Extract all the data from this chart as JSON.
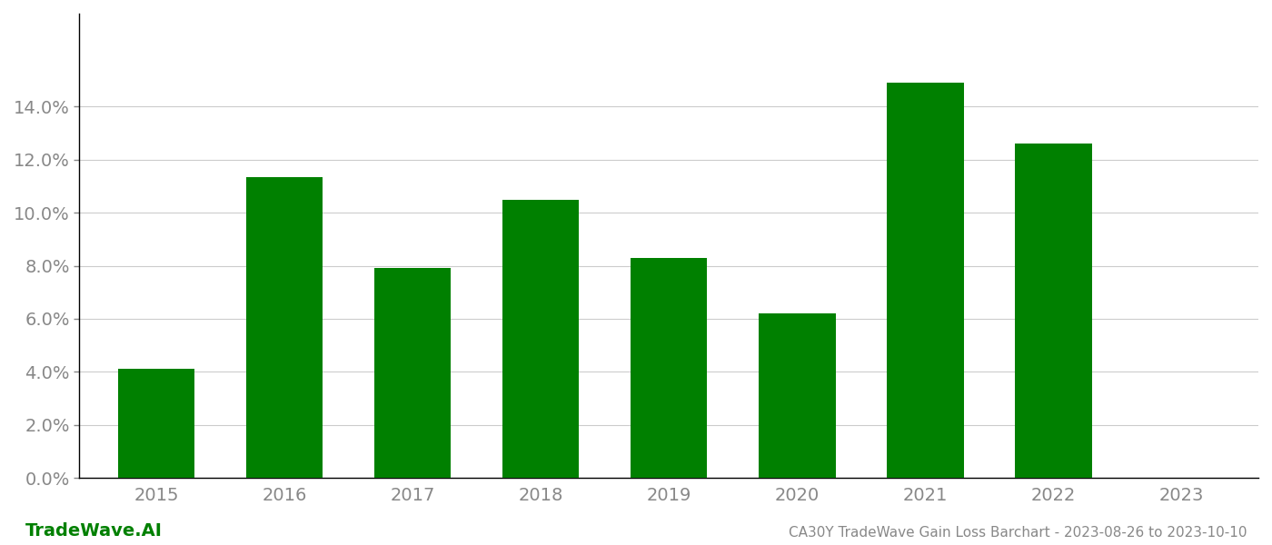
{
  "categories": [
    "2015",
    "2016",
    "2017",
    "2018",
    "2019",
    "2020",
    "2021",
    "2022",
    "2023"
  ],
  "values": [
    0.041,
    0.1135,
    0.079,
    0.105,
    0.083,
    0.062,
    0.149,
    0.126,
    null
  ],
  "bar_color": "#008000",
  "background_color": "#ffffff",
  "grid_color": "#cccccc",
  "spine_color": "#000000",
  "tick_color": "#888888",
  "title_text": "CA30Y TradeWave Gain Loss Barchart - 2023-08-26 to 2023-10-10",
  "watermark_text": "TradeWave.AI",
  "watermark_color": "#008000",
  "title_color": "#888888",
  "ylim": [
    0,
    0.175
  ],
  "yticks": [
    0.0,
    0.02,
    0.04,
    0.06,
    0.08,
    0.1,
    0.12,
    0.14
  ],
  "bar_width": 0.6,
  "tick_fontsize": 14,
  "watermark_fontsize": 14,
  "title_fontsize": 11
}
